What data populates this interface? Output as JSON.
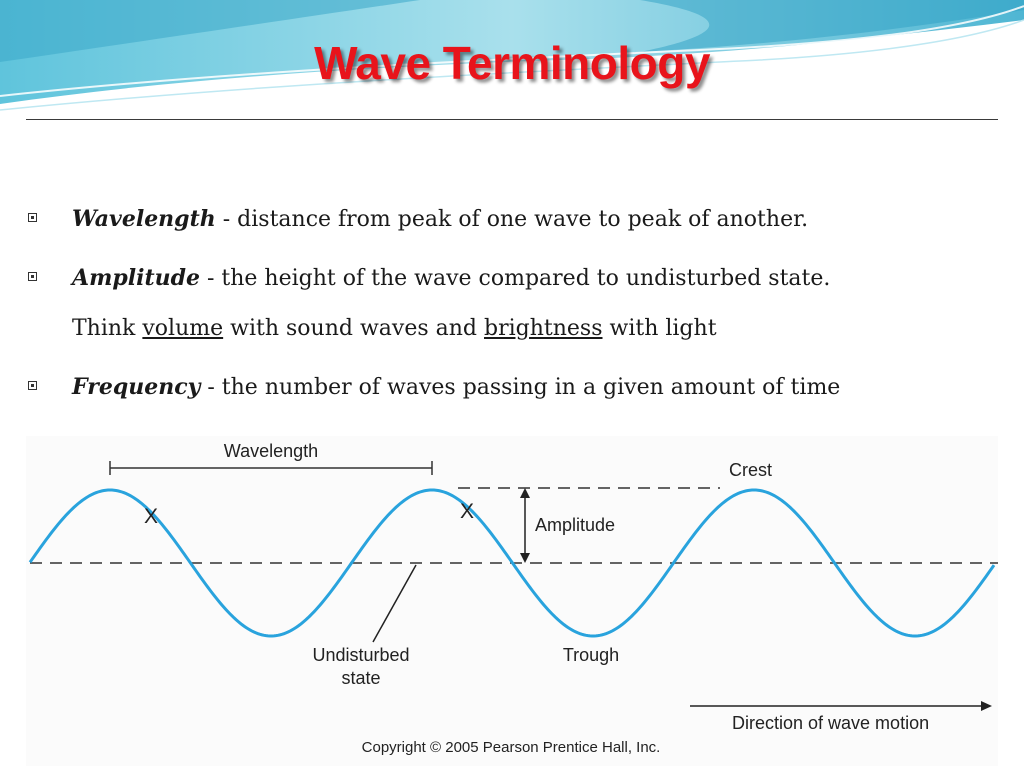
{
  "title": "Wave Terminology",
  "bullets": [
    {
      "term": "Wavelength",
      "text": " - distance from peak of one wave to peak of another."
    },
    {
      "term": "Amplitude",
      "text": " - the height of the wave compared to undisturbed state.",
      "line2": {
        "pre": "Think ",
        "u1": "volume",
        "mid": " with sound waves and ",
        "u2": "brightness",
        "post": " with light"
      }
    },
    {
      "term": "Frequency",
      "text": " - the number of waves passing in a given amount of time"
    }
  ],
  "diagram": {
    "wavelength_label": "Wavelength",
    "crest_label": "Crest",
    "amplitude_label": "Amplitude",
    "undisturbed_line1": "Undisturbed",
    "undisturbed_line2": "state",
    "trough_label": "Trough",
    "direction_label": "Direction of wave motion",
    "x_mark_1": "X",
    "x_mark_2": "X",
    "copyright": "Copyright © 2005 Pearson Prentice Hall, Inc.",
    "wave_color": "#29a3dd"
  }
}
